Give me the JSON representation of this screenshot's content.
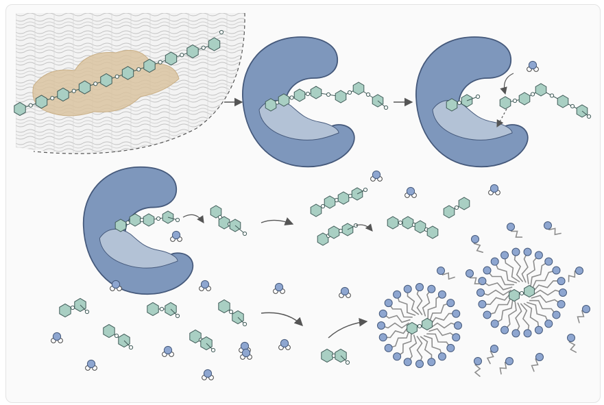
{
  "diagram": {
    "title": "",
    "colors": {
      "enzyme_fill": "#7e97bc",
      "enzyme_stroke": "#44587a",
      "cleft_fill": "#b3c2d6",
      "glucose_fill": "#a9cfc3",
      "glucose_stroke": "#3f5a57",
      "link_fill": "#ffffff",
      "water_fill": "#8ea6d0",
      "stain_fill": "#d9c3a0",
      "fabric_fill": "#f3f3f3",
      "fabric_line": "#c2c2c2",
      "surfactant_head": "#8ea6d0",
      "surfactant_tail": "#8c8c8c",
      "arrow_color": "#555555"
    },
    "icons": [
      "stain-on-fabric-icon",
      "enzyme-icon",
      "glucose-chain-icon",
      "water-molecule-icon",
      "micelle-icon",
      "surfactant-icon",
      "arrow-icon"
    ],
    "counts": {
      "surface_chain_units": 10,
      "bound_chain_units": 8,
      "water_molecules": 16,
      "dimers": 9,
      "micelles": 2,
      "free_surfactants": 12
    }
  }
}
